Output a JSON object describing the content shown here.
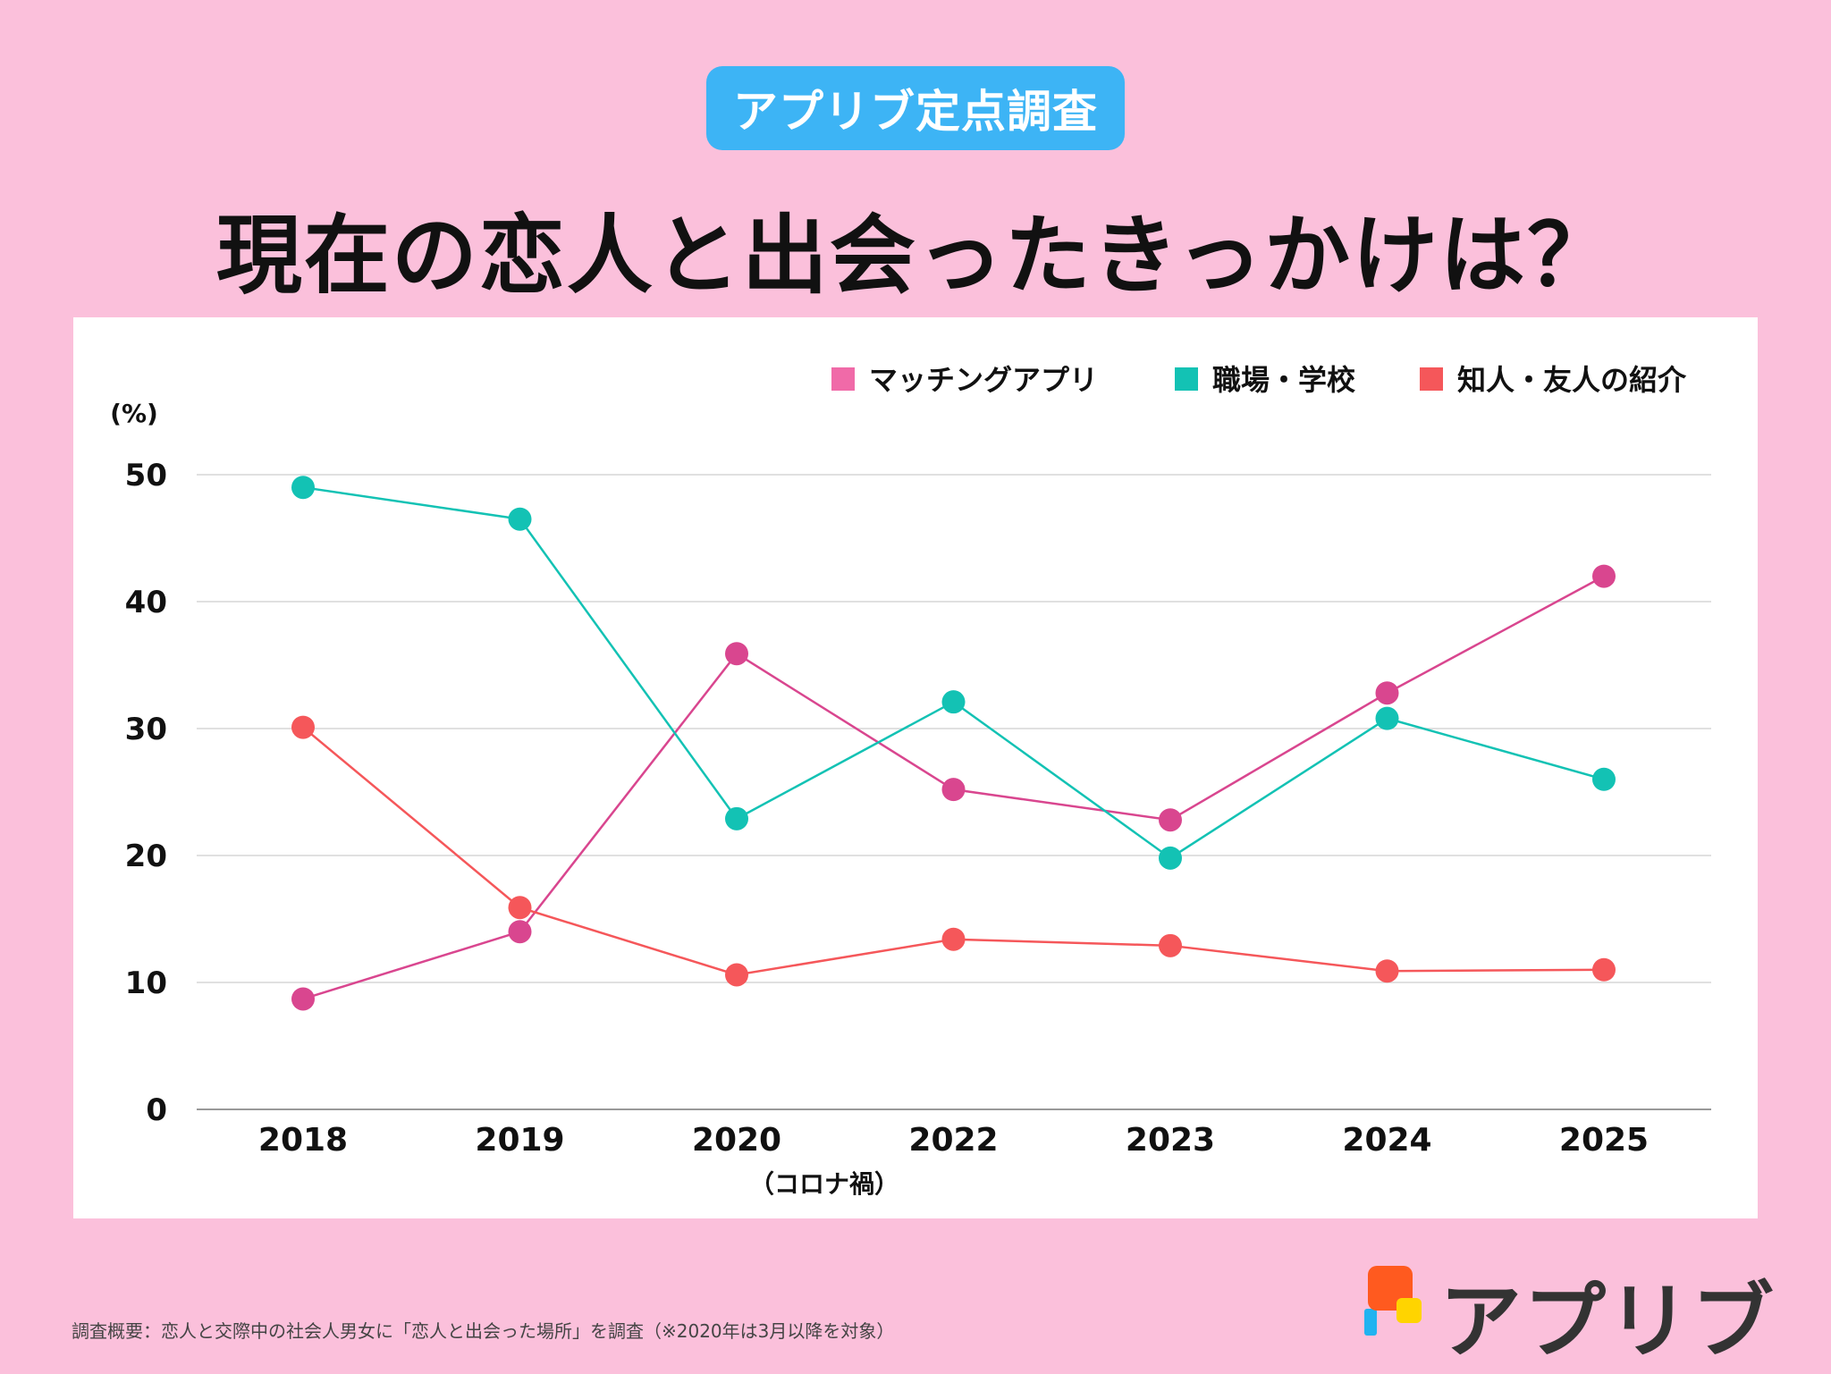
{
  "badge_label": "アプリブ定点調査",
  "title": "現在の恋人と出会ったきっかけは？",
  "footnote": "調査概要：恋人と交際中の社会人男女に「恋人と出会った場所」を調査（※2020年は3月以降を対象）",
  "brand_name": "アプリブ",
  "chart_data": {
    "type": "line",
    "ylabel": "(%)",
    "ylim": [
      0,
      50
    ],
    "yticks": [
      0,
      10,
      20,
      30,
      40,
      50
    ],
    "grid": true,
    "legend_position": "top-right",
    "categories": [
      "2018",
      "2019",
      "2020",
      "2022",
      "2023",
      "2024",
      "2025"
    ],
    "category_notes": [
      "",
      "",
      "（コロナ禍）",
      "",
      "",
      "",
      ""
    ],
    "series": [
      {
        "name": "マッチングアプリ",
        "color": "#d9468f",
        "legend_color": "#f06aa8",
        "values": [
          8.7,
          14.0,
          35.9,
          25.2,
          22.8,
          32.8,
          42.0
        ]
      },
      {
        "name": "職場・学校",
        "color": "#13c2b4",
        "legend_color": "#13c2b4",
        "values": [
          49.0,
          46.5,
          22.9,
          32.1,
          19.8,
          30.8,
          26.0
        ]
      },
      {
        "name": "知人・友人の紹介",
        "color": "#f5575a",
        "legend_color": "#f5575a",
        "values": [
          30.1,
          15.9,
          10.6,
          13.4,
          12.9,
          10.9,
          11.0
        ]
      }
    ]
  }
}
